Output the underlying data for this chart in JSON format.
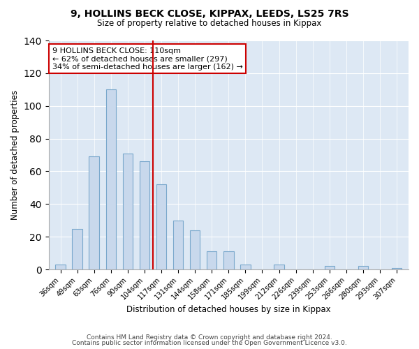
{
  "title1": "9, HOLLINS BECK CLOSE, KIPPAX, LEEDS, LS25 7RS",
  "title2": "Size of property relative to detached houses in Kippax",
  "xlabel": "Distribution of detached houses by size in Kippax",
  "ylabel": "Number of detached properties",
  "footer1": "Contains HM Land Registry data © Crown copyright and database right 2024.",
  "footer2": "Contains public sector information licensed under the Open Government Licence v3.0.",
  "bar_labels": [
    "36sqm",
    "49sqm",
    "63sqm",
    "76sqm",
    "90sqm",
    "104sqm",
    "117sqm",
    "131sqm",
    "144sqm",
    "158sqm",
    "171sqm",
    "185sqm",
    "199sqm",
    "212sqm",
    "226sqm",
    "239sqm",
    "253sqm",
    "266sqm",
    "280sqm",
    "293sqm",
    "307sqm"
  ],
  "bar_values": [
    3,
    25,
    69,
    110,
    71,
    66,
    52,
    30,
    24,
    11,
    11,
    3,
    0,
    3,
    0,
    0,
    2,
    0,
    2,
    0,
    1
  ],
  "bar_color": "#c8d8ec",
  "bar_edge_color": "#7aa8cc",
  "bg_color": "#dde8f4",
  "vline_color": "#cc0000",
  "annotation_title": "9 HOLLINS BECK CLOSE: 110sqm",
  "annotation_line1": "← 62% of detached houses are smaller (297)",
  "annotation_line2": "34% of semi-detached houses are larger (162) →",
  "annotation_box_edge": "#cc0000",
  "ylim": [
    0,
    140
  ],
  "yticks": [
    0,
    20,
    40,
    60,
    80,
    100,
    120,
    140
  ]
}
